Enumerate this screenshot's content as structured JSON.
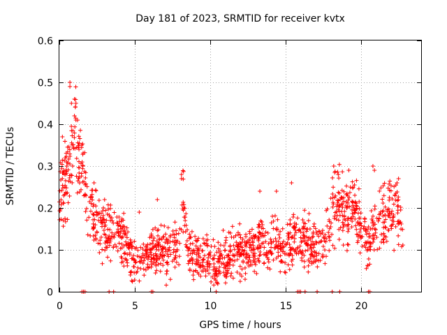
{
  "chart_data": {
    "type": "scatter",
    "title": "Day 181 of 2023, SRMTID for receiver kvtx",
    "xlabel": "GPS time / hours",
    "ylabel": "SRMTID / TECUs",
    "xlim": [
      0,
      24
    ],
    "ylim": [
      0,
      0.6
    ],
    "xticks": [
      "0",
      "5",
      "10",
      "15",
      "20"
    ],
    "xtick_values": [
      0,
      5,
      10,
      15,
      20
    ],
    "yticks": [
      "0",
      "0.1",
      "0.2",
      "0.3",
      "0.4",
      "0.5",
      "0.6"
    ],
    "ytick_values": [
      0,
      0.1,
      0.2,
      0.3,
      0.4,
      0.5,
      0.6
    ],
    "grid": true,
    "marker": "+",
    "series": [
      {
        "name": "SRMTID",
        "color": "#ff0000",
        "trend": {
          "x": [
            0,
            0.3,
            0.6,
            0.9,
            1.0,
            1.2,
            1.5,
            1.8,
            2.0,
            2.5,
            3.0,
            3.5,
            4.0,
            4.5,
            5.0,
            5.5,
            6.0,
            6.5,
            7.0,
            7.5,
            8.0,
            8.2,
            8.5,
            9.0,
            9.5,
            10.0,
            10.3,
            10.5,
            11.0,
            11.5,
            12.0,
            12.5,
            13.0,
            13.5,
            14.0,
            14.5,
            15.0,
            15.5,
            16.0,
            16.5,
            17.0,
            17.5,
            18.0,
            18.3,
            18.7,
            19.0,
            19.5,
            20.0,
            20.5,
            21.0,
            21.5,
            22.0,
            22.5,
            22.8
          ],
          "y": [
            0.23,
            0.26,
            0.28,
            0.33,
            0.4,
            0.34,
            0.29,
            0.24,
            0.2,
            0.17,
            0.15,
            0.14,
            0.14,
            0.1,
            0.08,
            0.075,
            0.09,
            0.1,
            0.09,
            0.1,
            0.11,
            0.22,
            0.1,
            0.09,
            0.08,
            0.085,
            0.06,
            0.07,
            0.08,
            0.09,
            0.1,
            0.09,
            0.1,
            0.13,
            0.1,
            0.12,
            0.09,
            0.13,
            0.12,
            0.12,
            0.11,
            0.1,
            0.16,
            0.22,
            0.2,
            0.18,
            0.2,
            0.17,
            0.1,
            0.16,
            0.18,
            0.2,
            0.18,
            0.16
          ]
        },
        "spikes": [
          {
            "x": 0.2,
            "y": 0.37
          },
          {
            "x": 0.4,
            "y": 0.32
          },
          {
            "x": 0.7,
            "y": 0.5
          },
          {
            "x": 0.7,
            "y": 0.49
          },
          {
            "x": 0.8,
            "y": 0.45
          },
          {
            "x": 1.0,
            "y": 0.46
          },
          {
            "x": 1.1,
            "y": 0.45
          },
          {
            "x": 1.0,
            "y": 0.42
          },
          {
            "x": 1.1,
            "y": 0.41
          },
          {
            "x": 1.3,
            "y": 0.34
          },
          {
            "x": 2.3,
            "y": 0.26
          },
          {
            "x": 3.0,
            "y": 0.22
          },
          {
            "x": 5.3,
            "y": 0.19
          },
          {
            "x": 6.5,
            "y": 0.22
          },
          {
            "x": 8.1,
            "y": 0.28
          },
          {
            "x": 8.1,
            "y": 0.27
          },
          {
            "x": 13.3,
            "y": 0.24
          },
          {
            "x": 14.4,
            "y": 0.24
          },
          {
            "x": 15.4,
            "y": 0.26
          },
          {
            "x": 18.2,
            "y": 0.3
          },
          {
            "x": 18.5,
            "y": 0.28
          },
          {
            "x": 19.2,
            "y": 0.29
          },
          {
            "x": 20.8,
            "y": 0.3
          },
          {
            "x": 20.9,
            "y": 0.29
          },
          {
            "x": 22.5,
            "y": 0.27
          },
          {
            "x": 22.4,
            "y": 0.26
          }
        ],
        "zero_points": [
          1.5,
          1.6,
          1.7,
          3.3,
          3.6,
          6.1,
          6.2,
          10.4,
          15.8,
          15.9,
          16.0,
          16.3,
          17.1,
          18.1,
          18.6,
          20.5,
          20.6
        ]
      }
    ]
  }
}
